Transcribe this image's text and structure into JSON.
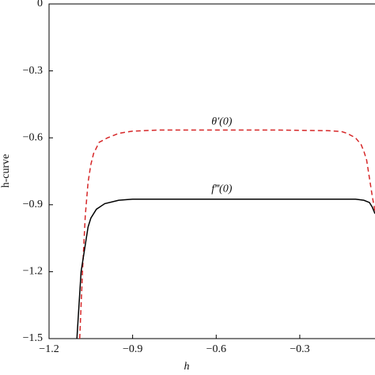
{
  "chart_data": {
    "type": "line",
    "x_label": "h",
    "y_label": "h-curve",
    "xlim": [
      -1.2,
      -0.03
    ],
    "ylim": [
      -1.5,
      0
    ],
    "xticks": [
      {
        "value": -1.2,
        "label": "−1.2"
      },
      {
        "value": -0.9,
        "label": "−0.9"
      },
      {
        "value": -0.6,
        "label": "−0.6"
      },
      {
        "value": -0.3,
        "label": "−0.3"
      }
    ],
    "yticks": [
      0,
      {
        "value": -0.3,
        "label": "−0.3"
      },
      {
        "value": -0.6,
        "label": "−0.6"
      },
      {
        "value": -0.9,
        "label": "−0.9"
      },
      {
        "value": -1.2,
        "label": "−1.2"
      },
      {
        "value": -1.5,
        "label": "−1.5"
      }
    ],
    "series": [
      {
        "name": "θ′(0)",
        "color": "#d62728",
        "dashed": true,
        "x": [
          -1.09,
          -1.08,
          -1.07,
          -1.06,
          -1.05,
          -1.04,
          -1.02,
          -0.99,
          -0.95,
          -0.9,
          -0.8,
          -0.6,
          -0.4,
          -0.2,
          -0.15,
          -0.13,
          -0.1,
          -0.08,
          -0.07,
          -0.06,
          -0.05,
          -0.04,
          -0.03
        ],
        "values": [
          -1.5,
          -1.2,
          -0.95,
          -0.8,
          -0.72,
          -0.67,
          -0.62,
          -0.6,
          -0.58,
          -0.57,
          -0.565,
          -0.565,
          -0.565,
          -0.568,
          -0.572,
          -0.58,
          -0.6,
          -0.63,
          -0.66,
          -0.7,
          -0.78,
          -0.86,
          -0.93
        ]
      },
      {
        "name": "f‴(0)",
        "color": "#000000",
        "dashed": false,
        "x": [
          -1.1,
          -1.09,
          -1.085,
          -1.07,
          -1.06,
          -1.05,
          -1.03,
          -1.0,
          -0.95,
          -0.9,
          -0.6,
          -0.3,
          -0.1,
          -0.07,
          -0.05,
          -0.04,
          -0.03
        ],
        "values": [
          -1.5,
          -1.3,
          -1.2,
          -1.08,
          -1.0,
          -0.96,
          -0.92,
          -0.895,
          -0.88,
          -0.875,
          -0.875,
          -0.875,
          -0.875,
          -0.88,
          -0.89,
          -0.91,
          -0.94
        ]
      }
    ],
    "annotations": [
      {
        "text": "θ′(0)",
        "x": -0.58,
        "y": -0.53
      },
      {
        "text": "f‴(0)",
        "x": -0.58,
        "y": -0.83
      }
    ]
  }
}
